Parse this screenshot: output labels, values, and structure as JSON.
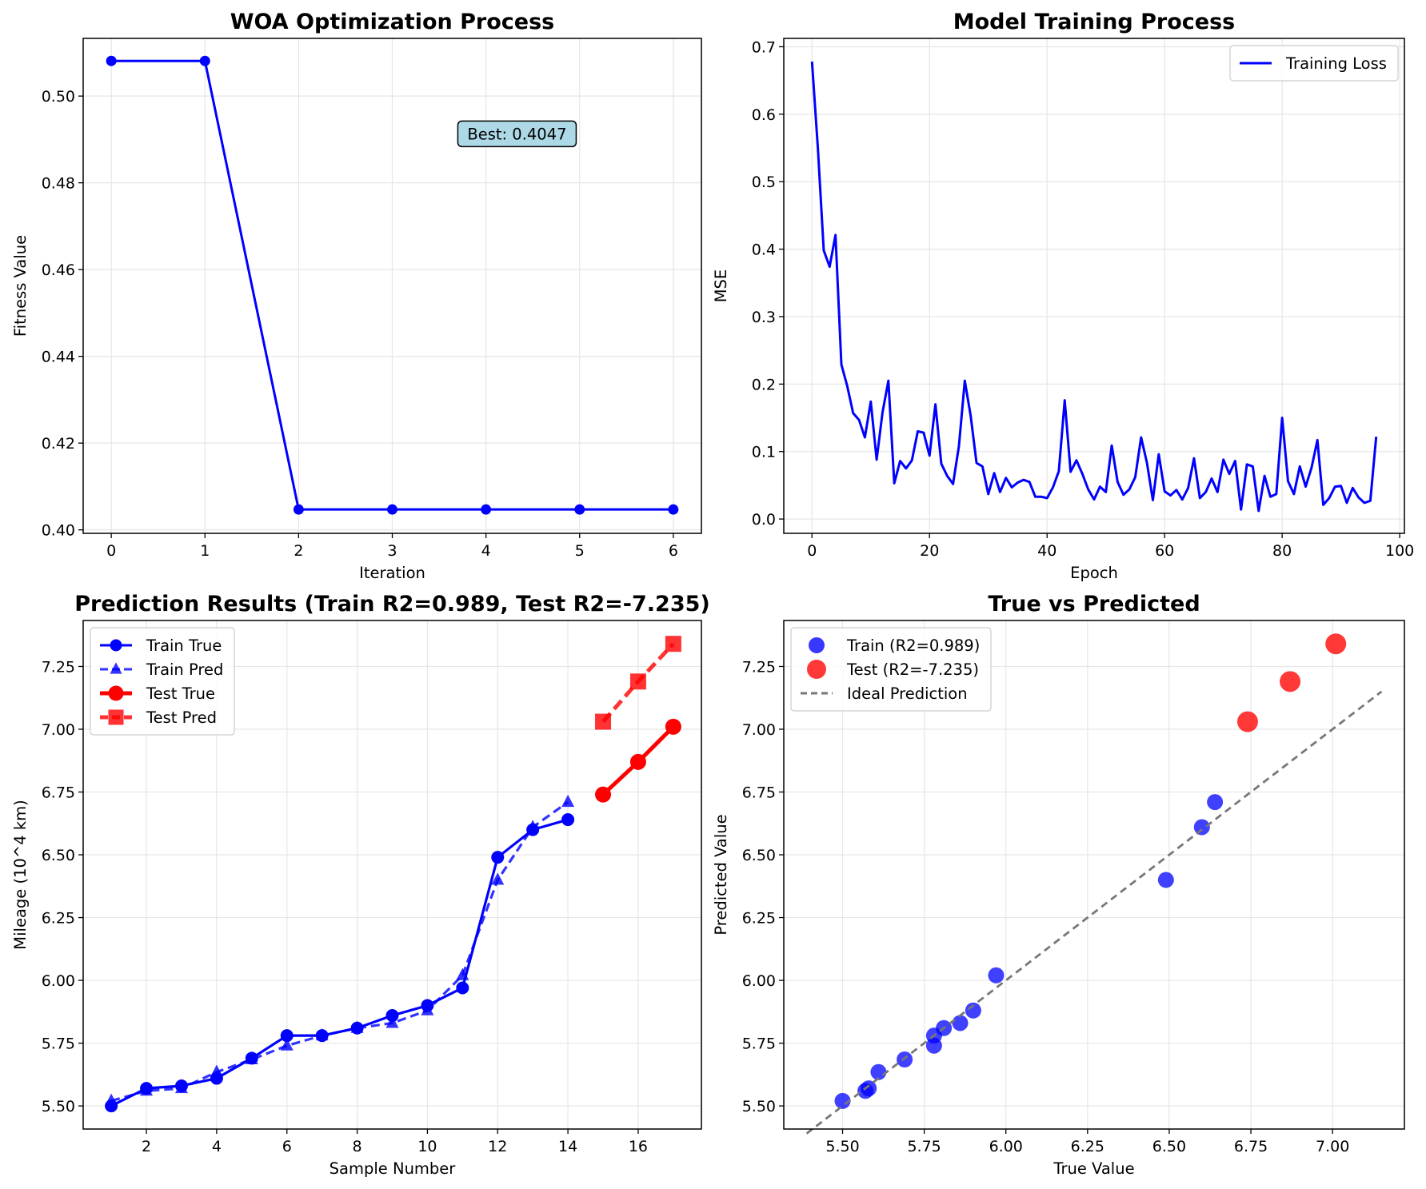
{
  "chart_data": [
    {
      "type": "line",
      "title": "WOA Optimization Process",
      "xlabel": "Iteration",
      "ylabel": "Fitness Value",
      "xlim": [
        -0.3,
        6.3
      ],
      "ylim": [
        0.3992,
        0.5133
      ],
      "xticks": [
        0,
        1,
        2,
        3,
        4,
        5,
        6
      ],
      "yticks": [
        0.4,
        0.42,
        0.44,
        0.46,
        0.48,
        0.5
      ],
      "ytick_labels": [
        "0.40",
        "0.42",
        "0.44",
        "0.46",
        "0.48",
        "0.50"
      ],
      "grid": true,
      "series": [
        {
          "color": "#0000ff",
          "marker": "circle",
          "x": [
            0,
            1,
            2,
            3,
            4,
            5,
            6
          ],
          "y": [
            0.5081,
            0.5081,
            0.4047,
            0.4047,
            0.4047,
            0.4047,
            0.4047
          ]
        }
      ],
      "annotations": [
        {
          "text": "Best: 0.4047",
          "color": "#add8e6"
        }
      ]
    },
    {
      "type": "line",
      "title": "Model Training Process",
      "xlabel": "Epoch",
      "ylabel": "MSE",
      "xlim": [
        -4.8,
        100.8
      ],
      "ylim": [
        -0.0212,
        0.7124
      ],
      "xticks": [
        0,
        20,
        40,
        60,
        80,
        100
      ],
      "yticks": [
        0.0,
        0.1,
        0.2,
        0.3,
        0.4,
        0.5,
        0.6,
        0.7
      ],
      "ytick_labels": [
        "0.0",
        "0.1",
        "0.2",
        "0.3",
        "0.4",
        "0.5",
        "0.6",
        "0.7"
      ],
      "grid": true,
      "legend": {
        "position": "upper right"
      },
      "series": [
        {
          "name": "Training Loss",
          "color": "#0000ff",
          "y": [
            0.678,
            0.55,
            0.398,
            0.374,
            0.421,
            0.229,
            0.197,
            0.157,
            0.147,
            0.121,
            0.174,
            0.088,
            0.158,
            0.205,
            0.053,
            0.086,
            0.075,
            0.087,
            0.13,
            0.128,
            0.094,
            0.17,
            0.082,
            0.064,
            0.052,
            0.108,
            0.205,
            0.153,
            0.083,
            0.078,
            0.037,
            0.068,
            0.04,
            0.061,
            0.047,
            0.054,
            0.058,
            0.055,
            0.033,
            0.033,
            0.031,
            0.047,
            0.071,
            0.176,
            0.07,
            0.087,
            0.067,
            0.044,
            0.029,
            0.048,
            0.04,
            0.109,
            0.055,
            0.036,
            0.044,
            0.062,
            0.121,
            0.083,
            0.028,
            0.096,
            0.041,
            0.035,
            0.043,
            0.029,
            0.046,
            0.09,
            0.031,
            0.04,
            0.06,
            0.04,
            0.088,
            0.067,
            0.086,
            0.014,
            0.081,
            0.078,
            0.012,
            0.064,
            0.033,
            0.037,
            0.15,
            0.056,
            0.037,
            0.078,
            0.048,
            0.076,
            0.117,
            0.021,
            0.031,
            0.048,
            0.049,
            0.024,
            0.046,
            0.032,
            0.024,
            0.027,
            0.122
          ]
        }
      ]
    },
    {
      "type": "line",
      "title": "Prediction Results (Train R2=0.989, Test R2=-7.235)",
      "xlabel": "Sample Number",
      "ylabel": "Mileage (10^4 km)",
      "xlim": [
        0.2,
        17.8
      ],
      "ylim": [
        5.408,
        7.433
      ],
      "xticks": [
        2,
        4,
        6,
        8,
        10,
        12,
        14,
        16
      ],
      "yticks": [
        5.5,
        5.75,
        6.0,
        6.25,
        6.5,
        6.75,
        7.0,
        7.25
      ],
      "ytick_labels": [
        "5.50",
        "5.75",
        "6.00",
        "6.25",
        "6.50",
        "6.75",
        "7.00",
        "7.25"
      ],
      "grid": true,
      "legend": {
        "position": "upper left"
      },
      "series": [
        {
          "name": "Train True",
          "color": "#0000ff",
          "style": "solid",
          "marker": "circle",
          "x": [
            1,
            2,
            3,
            4,
            5,
            6,
            7,
            8,
            9,
            10,
            11,
            12,
            13,
            14
          ],
          "y": [
            5.5,
            5.57,
            5.58,
            5.61,
            5.69,
            5.78,
            5.78,
            5.81,
            5.86,
            5.9,
            5.97,
            6.49,
            6.6,
            6.64
          ]
        },
        {
          "name": "Train Pred",
          "color": "#0000ff",
          "style": "dashed",
          "marker": "triangle",
          "x": [
            1,
            2,
            3,
            4,
            5,
            6,
            7,
            8,
            9,
            10,
            11,
            12,
            13,
            14
          ],
          "y": [
            5.52,
            5.56,
            5.57,
            5.635,
            5.685,
            5.74,
            5.78,
            5.81,
            5.83,
            5.88,
            6.02,
            6.4,
            6.61,
            6.71
          ]
        },
        {
          "name": "Test True",
          "color": "#ff0000",
          "style": "solid",
          "marker": "circle",
          "x": [
            15,
            16,
            17
          ],
          "y": [
            6.74,
            6.87,
            7.01
          ]
        },
        {
          "name": "Test Pred",
          "color": "#ff0000",
          "style": "dashed",
          "marker": "square",
          "x": [
            15,
            16,
            17
          ],
          "y": [
            7.03,
            7.19,
            7.34
          ]
        }
      ]
    },
    {
      "type": "scatter",
      "title": "True vs Predicted",
      "xlabel": "True Value",
      "ylabel": "Predicted Value",
      "xlim": [
        5.32,
        7.22
      ],
      "ylim": [
        5.408,
        7.433
      ],
      "xticks": [
        5.5,
        5.75,
        6.0,
        6.25,
        6.5,
        6.75,
        7.0
      ],
      "yticks": [
        5.5,
        5.75,
        6.0,
        6.25,
        6.5,
        6.75,
        7.0,
        7.25
      ],
      "xtick_labels": [
        "5.50",
        "5.75",
        "6.00",
        "6.25",
        "6.50",
        "6.75",
        "7.00"
      ],
      "ytick_labels": [
        "5.50",
        "5.75",
        "6.00",
        "6.25",
        "6.50",
        "6.75",
        "7.00",
        "7.25"
      ],
      "grid": true,
      "legend": {
        "position": "upper left"
      },
      "series": [
        {
          "name": "Train (R2=0.989)",
          "color": "#0000ff",
          "x": [
            5.5,
            5.57,
            5.58,
            5.61,
            5.69,
            5.78,
            5.78,
            5.81,
            5.86,
            5.9,
            5.97,
            6.49,
            6.6,
            6.64
          ],
          "y": [
            5.52,
            5.56,
            5.57,
            5.635,
            5.685,
            5.74,
            5.78,
            5.81,
            5.83,
            5.88,
            6.02,
            6.4,
            6.61,
            6.71
          ]
        },
        {
          "name": "Test (R2=-7.235)",
          "color": "#ff0000",
          "x": [
            6.74,
            6.87,
            7.01
          ],
          "y": [
            7.03,
            7.19,
            7.34
          ]
        },
        {
          "name": "Ideal Prediction",
          "color": "#777777",
          "style": "dashed",
          "x": [
            5.39,
            7.15
          ],
          "y": [
            5.39,
            7.15
          ]
        }
      ]
    }
  ]
}
